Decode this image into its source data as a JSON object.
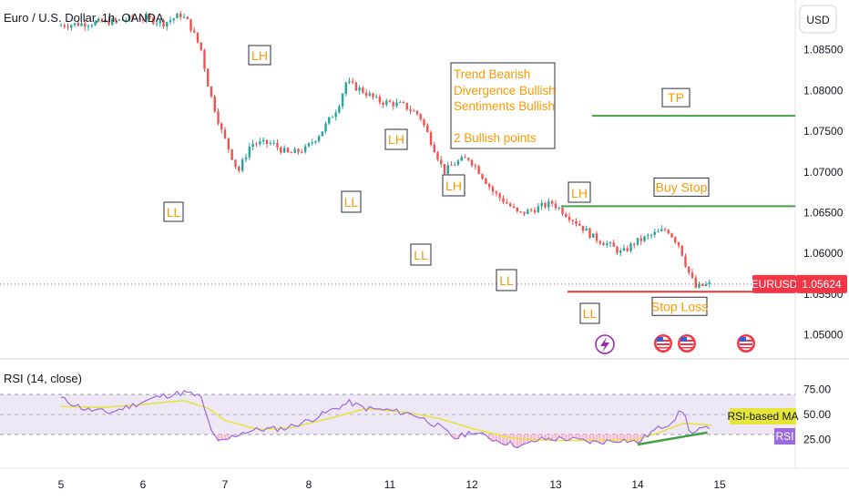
{
  "header": {
    "symbol_title": "Euro / U.S. Dollar, 1h, OANDA",
    "currency_button": "USD"
  },
  "colors": {
    "bull": "#26a69a",
    "bear": "#ef5350",
    "annotation_text": "#ff9800",
    "annotation_border": "#2a2e39",
    "level_line": "#43a047",
    "stop_line": "#e53935",
    "rsi_line": "#9c6ade",
    "rsi_ma_line": "#e5e53a",
    "rsi_band": "#ede7f6",
    "price_tag": "#f23645"
  },
  "price_axis": {
    "ticks": [
      "1.08500",
      "1.08000",
      "1.07500",
      "1.07000",
      "1.06500",
      "1.06000",
      "1.05500",
      "1.05000"
    ],
    "current_symbol": "EURUSD",
    "current_price": "1.05624"
  },
  "time_axis": {
    "ticks": [
      "5",
      "6",
      "7",
      "8",
      "11",
      "12",
      "13",
      "14",
      "15"
    ]
  },
  "annotations": {
    "swing_labels": [
      "LH",
      "LL",
      "LH",
      "LL",
      "LH",
      "LL",
      "LL",
      "LH",
      "LL"
    ],
    "analysis_box": [
      "Trend Bearish",
      "Divergence Bullish",
      "Sentiments Bullish",
      "",
      "2 Bullish points"
    ],
    "levels": {
      "tp_label": "TP",
      "buy_stop_label": "Buy Stop",
      "stop_loss_label": "Stop Loss"
    }
  },
  "rsi_pane": {
    "title": "RSI (14, close)",
    "ticks": [
      "75.00",
      "50.00",
      "25.00"
    ],
    "ma_tag": "RSI-based MA",
    "rsi_tag": "RSI"
  },
  "event_icons": [
    "lightning-icon",
    "us-flag-icon",
    "us-flag-icon",
    "us-flag-icon"
  ],
  "chart_data": {
    "type": "candlestick",
    "symbol": "EURUSD",
    "x_days": [
      "5",
      "6",
      "7",
      "8",
      "11",
      "12",
      "13",
      "14",
      "15"
    ],
    "ylim": [
      1.0475,
      1.09
    ],
    "price_path": [
      [
        4.0,
        1.088
      ],
      [
        4.7,
        1.0885
      ],
      [
        5.0,
        1.089
      ],
      [
        5.3,
        1.0883
      ],
      [
        5.5,
        1.0893
      ],
      [
        5.6,
        1.0883
      ],
      [
        5.75,
        1.085
      ],
      [
        5.85,
        1.08
      ],
      [
        6.0,
        1.075
      ],
      [
        6.2,
        1.07
      ],
      [
        6.35,
        1.0735
      ],
      [
        6.6,
        1.0735
      ],
      [
        6.8,
        1.0722
      ],
      [
        7.0,
        1.0728
      ],
      [
        7.2,
        1.075
      ],
      [
        7.4,
        1.078
      ],
      [
        7.5,
        1.081
      ],
      [
        7.7,
        1.08
      ],
      [
        7.9,
        1.0787
      ],
      [
        8.2,
        1.0782
      ],
      [
        8.4,
        1.077
      ],
      [
        8.6,
        1.0725
      ],
      [
        8.7,
        1.07
      ],
      [
        8.85,
        1.0712
      ],
      [
        9.0,
        1.0717
      ],
      [
        9.1,
        1.0705
      ],
      [
        9.3,
        1.0675
      ],
      [
        9.5,
        1.0658
      ],
      [
        9.6,
        1.0648
      ],
      [
        9.8,
        1.0655
      ],
      [
        10.0,
        1.0662
      ],
      [
        10.3,
        1.0638
      ],
      [
        10.5,
        1.062
      ],
      [
        10.7,
        1.061
      ],
      [
        10.85,
        1.06
      ],
      [
        11.0,
        1.0613
      ],
      [
        11.2,
        1.0622
      ],
      [
        11.4,
        1.063
      ],
      [
        11.55,
        1.061
      ],
      [
        11.65,
        1.058
      ],
      [
        11.75,
        1.0558
      ],
      [
        11.9,
        1.0562
      ]
    ],
    "annotated_swings": [
      {
        "label": "LL",
        "price": 1.0702
      },
      {
        "label": "LH",
        "price": 1.0815
      },
      {
        "label": "LL",
        "price": 1.0697
      },
      {
        "label": "LH",
        "price": 1.0725
      },
      {
        "label": "LL",
        "price": 1.0636
      },
      {
        "label": "LH",
        "price": 1.0663
      },
      {
        "label": "LL",
        "price": 1.0608
      },
      {
        "label": "LH",
        "price": 1.0656
      },
      {
        "label": "LL",
        "price": 1.0555
      }
    ],
    "levels": [
      {
        "name": "TP",
        "price": 1.0769
      },
      {
        "name": "Buy Stop",
        "price": 1.0658
      },
      {
        "name": "Stop Loss",
        "price": 1.0553
      }
    ],
    "last_price": 1.05624,
    "rsi": {
      "ylim": [
        0,
        100
      ],
      "bands": [
        70,
        50,
        30
      ],
      "path": [
        [
          4.0,
          66
        ],
        [
          4.3,
          55
        ],
        [
          4.6,
          52
        ],
        [
          4.9,
          60
        ],
        [
          5.2,
          68
        ],
        [
          5.5,
          72
        ],
        [
          5.7,
          68
        ],
        [
          5.8,
          42
        ],
        [
          5.9,
          22
        ],
        [
          6.0,
          24
        ],
        [
          6.2,
          32
        ],
        [
          6.4,
          35
        ],
        [
          6.7,
          36
        ],
        [
          7.0,
          44
        ],
        [
          7.3,
          55
        ],
        [
          7.5,
          62
        ],
        [
          7.7,
          56
        ],
        [
          8.0,
          54
        ],
        [
          8.3,
          50
        ],
        [
          8.6,
          38
        ],
        [
          8.8,
          26
        ],
        [
          9.0,
          33
        ],
        [
          9.3,
          24
        ],
        [
          9.6,
          18
        ],
        [
          9.8,
          25
        ],
        [
          10.1,
          26
        ],
        [
          10.5,
          22
        ],
        [
          10.8,
          25
        ],
        [
          11.0,
          22
        ],
        [
          11.2,
          34
        ],
        [
          11.4,
          42
        ],
        [
          11.55,
          55
        ],
        [
          11.65,
          30
        ],
        [
          11.8,
          36
        ],
        [
          11.9,
          34
        ]
      ],
      "ma_path": [
        [
          4.0,
          58
        ],
        [
          4.5,
          57
        ],
        [
          5.0,
          60
        ],
        [
          5.5,
          64
        ],
        [
          5.8,
          56
        ],
        [
          6.0,
          44
        ],
        [
          6.4,
          35
        ],
        [
          6.8,
          37
        ],
        [
          7.3,
          47
        ],
        [
          7.7,
          56
        ],
        [
          8.2,
          52
        ],
        [
          8.6,
          46
        ],
        [
          9.0,
          36
        ],
        [
          9.5,
          26
        ],
        [
          10.0,
          24
        ],
        [
          10.5,
          24
        ],
        [
          11.0,
          25
        ],
        [
          11.3,
          33
        ],
        [
          11.55,
          41
        ],
        [
          11.8,
          40
        ],
        [
          11.9,
          39
        ]
      ],
      "divergence_line": [
        [
          11.0,
          20
        ],
        [
          11.85,
          32
        ]
      ]
    }
  }
}
